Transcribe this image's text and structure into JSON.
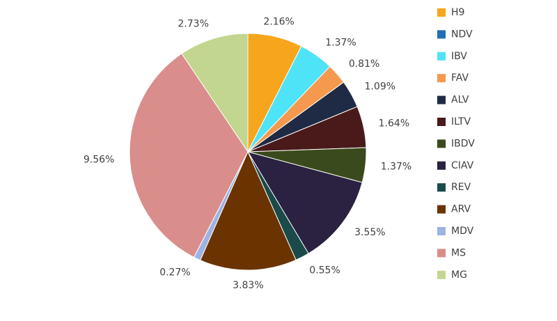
{
  "chart_data": {
    "type": "pie",
    "categories": [
      "H9",
      "NDV",
      "IBV",
      "FAV",
      "ALV",
      "ILTV",
      "IBDV",
      "CIAV",
      "REV",
      "ARV",
      "MDV",
      "MS",
      "MG"
    ],
    "values": [
      2.16,
      0,
      1.37,
      0.81,
      1.09,
      1.64,
      1.37,
      3.55,
      0.55,
      3.83,
      0.27,
      9.56,
      2.73
    ],
    "value_labels": [
      "2.16%",
      null,
      "1.37%",
      "0.81%",
      "1.09%",
      "1.64%",
      "1.37%",
      "3.55%",
      "0.55%",
      "3.83%",
      "0.27%",
      "9.56%",
      "2.73%"
    ],
    "colors": [
      "#f7a51c",
      "#1f6fb5",
      "#4fe3f7",
      "#f5994e",
      "#1f2b45",
      "#4a1a1a",
      "#3b4a1c",
      "#2a2240",
      "#1b4a4a",
      "#6b3300",
      "#9db3e3",
      "#d98e8c",
      "#c3d690"
    ],
    "legend": "right"
  }
}
